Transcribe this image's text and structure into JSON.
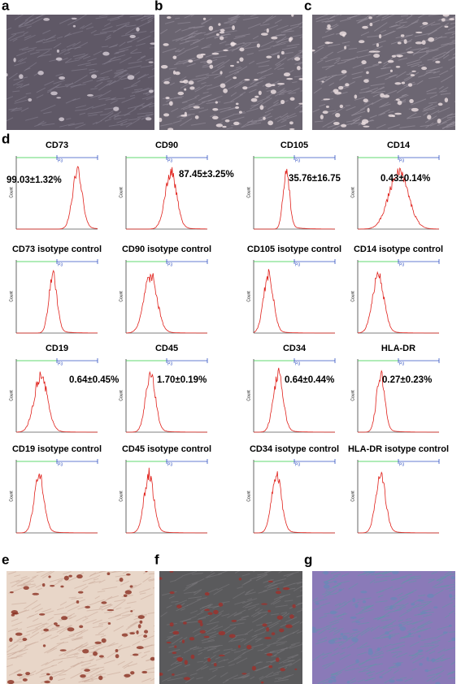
{
  "panel_labels": [
    "a",
    "b",
    "c",
    "d",
    "e",
    "f",
    "g"
  ],
  "histograms": [
    {
      "title": "CD73",
      "annotation": "99.03±1.32%",
      "gate": "P3",
      "y_label": "Count"
    },
    {
      "title": "CD90",
      "annotation": "87.45±3.25%",
      "gate": "P3",
      "y_label": "Count"
    },
    {
      "title": "CD105",
      "annotation": "35.76±16.75",
      "gate": "P3",
      "y_label": "Count"
    },
    {
      "title": "CD14",
      "annotation": "0.43±0.14%",
      "gate": "P3",
      "y_label": "Count"
    },
    {
      "title": "CD73 isotype control",
      "gate": "P3",
      "y_label": "Count"
    },
    {
      "title": "CD90 isotype control",
      "gate": "P3",
      "y_label": "Count"
    },
    {
      "title": "CD105 isotype control",
      "gate": "P3",
      "y_label": "Count"
    },
    {
      "title": "CD14 isotype control",
      "gate": "P3",
      "y_label": "Count"
    },
    {
      "title": "CD19",
      "annotation": "0.64±0.45%",
      "gate": "P3",
      "y_label": "Count"
    },
    {
      "title": "CD45",
      "annotation": "1.70±0.19%",
      "gate": "P3",
      "y_label": "Count"
    },
    {
      "title": "CD34",
      "annotation": "0.64±0.44%",
      "gate": "P3",
      "y_label": "Count"
    },
    {
      "title": "HLA-DR",
      "annotation": "0.27±0.23%",
      "gate": "P3",
      "y_label": "Count"
    },
    {
      "title": "CD19 isotype control",
      "gate": "P3",
      "y_label": "Count"
    },
    {
      "title": "CD45 isotype control",
      "gate": "P3",
      "y_label": "Count"
    },
    {
      "title": "CD34 isotype control",
      "gate": "P3",
      "y_label": "Count"
    },
    {
      "title": "HLA-DR isotype control",
      "gate": "P3",
      "y_label": "Count"
    }
  ]
}
